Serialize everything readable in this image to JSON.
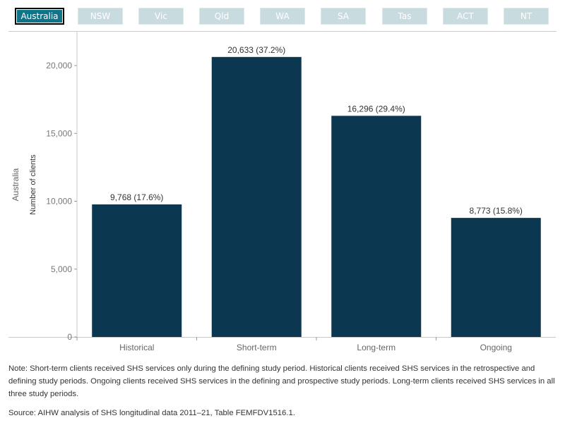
{
  "filters": {
    "tabs": [
      "Australia",
      "NSW",
      "Vic",
      "Qld",
      "WA",
      "SA",
      "Tas",
      "ACT",
      "NT"
    ],
    "active": "Australia",
    "active_color": "#0d7489",
    "inactive_color": "#c8dbdf"
  },
  "chart_data": {
    "type": "bar",
    "row_label": "Australia",
    "ylabel": "Number of clients",
    "xlabel": "",
    "categories": [
      "Historical",
      "Short-term",
      "Long-term",
      "Ongoing"
    ],
    "values": [
      9768,
      20633,
      16296,
      8773
    ],
    "data_labels": [
      "9,768 (17.6%)",
      "20,633 (37.2%)",
      "16,296 (29.4%)",
      "8,773 (15.8%)"
    ],
    "yticks": [
      0,
      5000,
      10000,
      15000,
      20000
    ],
    "ytick_labels": [
      "0",
      "5,000",
      "10,000",
      "15,000",
      "20,000"
    ],
    "ylim": [
      0,
      22000
    ],
    "grid": false,
    "bar_color": "#0b3750"
  },
  "note": "Note: Short-term clients received SHS services only during the defining study period. Historical clients received SHS services in the retrospective and defining study periods. Ongoing clients received SHS services in the defining and prospective study periods. Long-term clients received SHS services in all three study periods.",
  "source": "Source: AIHW analysis of SHS longitudinal data 2011–21, Table FEMFDV1516.1."
}
